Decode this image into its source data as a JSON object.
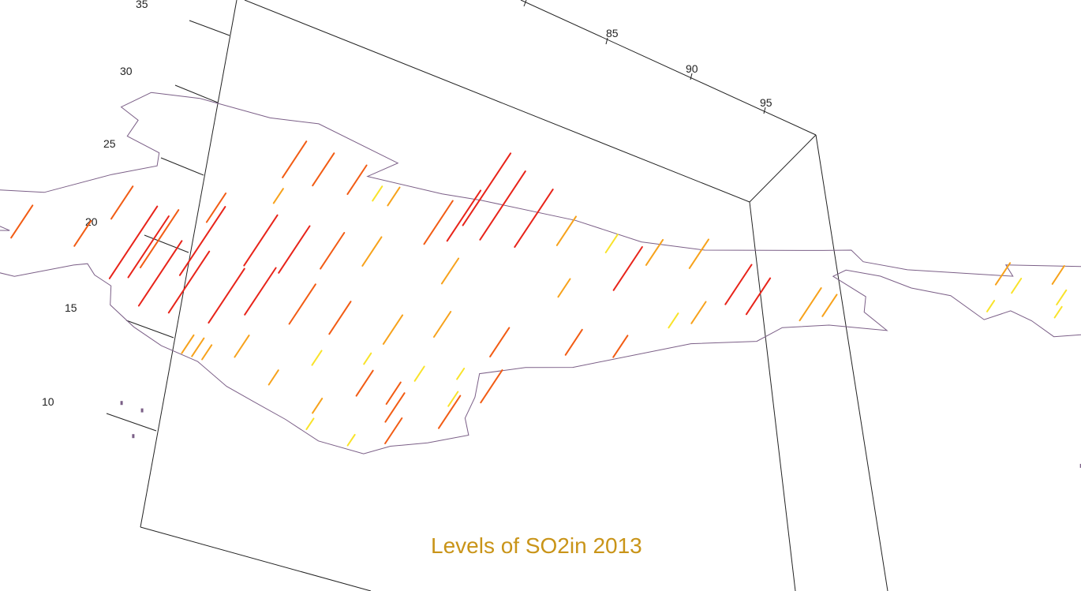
{
  "chart_data": {
    "type": "3d-spike-map",
    "title": "Levels of SO2in 2013",
    "title_color": "#c99418",
    "map_outline_color": "#7b5f87",
    "ylabel_ticks": [
      "35",
      "30",
      "25",
      "20",
      "15",
      "10"
    ],
    "xlabel_ticks": [
      "85",
      "90",
      "95"
    ],
    "color_levels": [
      {
        "level": "high",
        "color": "#e8241a"
      },
      {
        "level": "medium-high",
        "color": "#f25c14"
      },
      {
        "level": "medium",
        "color": "#f7a21b"
      },
      {
        "level": "low",
        "color": "#f9e32a"
      }
    ],
    "points": [
      {
        "lon": 77.0,
        "lat": 30.7,
        "level": "medium-high",
        "value": 1.0
      },
      {
        "lon": 77.6,
        "lat": 30.2,
        "level": "medium-high",
        "value": 0.9
      },
      {
        "lon": 78.3,
        "lat": 29.7,
        "level": "medium-high",
        "value": 0.8
      },
      {
        "lon": 78.8,
        "lat": 29.3,
        "level": "low",
        "value": 0.4
      },
      {
        "lon": 79.1,
        "lat": 29.0,
        "level": "medium",
        "value": 0.5
      },
      {
        "lon": 80.6,
        "lat": 27.8,
        "level": "high",
        "value": 2.0
      },
      {
        "lon": 80.9,
        "lat": 26.7,
        "level": "high",
        "value": 1.9
      },
      {
        "lon": 81.6,
        "lat": 26.3,
        "level": "high",
        "value": 1.6
      },
      {
        "lon": 80.2,
        "lat": 26.4,
        "level": "high",
        "value": 1.4
      },
      {
        "lon": 79.7,
        "lat": 26.0,
        "level": "medium-high",
        "value": 1.2
      },
      {
        "lon": 82.5,
        "lat": 26.7,
        "level": "medium",
        "value": 0.8
      },
      {
        "lon": 83.5,
        "lat": 26.4,
        "level": "low",
        "value": 0.5
      },
      {
        "lon": 84.3,
        "lat": 25.6,
        "level": "medium",
        "value": 0.7
      },
      {
        "lon": 85.2,
        "lat": 25.6,
        "level": "medium",
        "value": 0.8
      },
      {
        "lon": 76.7,
        "lat": 28.5,
        "level": "medium",
        "value": 0.4
      },
      {
        "lon": 73.2,
        "lat": 26.2,
        "level": "medium-high",
        "value": 0.9
      },
      {
        "lon": 75.2,
        "lat": 26.5,
        "level": "medium-high",
        "value": 0.8
      },
      {
        "lon": 71.0,
        "lat": 24.0,
        "level": "medium-high",
        "value": 0.9
      },
      {
        "lon": 72.3,
        "lat": 23.7,
        "level": "medium-high",
        "value": 0.7
      },
      {
        "lon": 73.6,
        "lat": 22.3,
        "level": "medium-high",
        "value": 1.6
      },
      {
        "lon": 72.9,
        "lat": 21.2,
        "level": "high",
        "value": 2.0
      },
      {
        "lon": 73.3,
        "lat": 21.4,
        "level": "high",
        "value": 1.7
      },
      {
        "lon": 74.4,
        "lat": 21.9,
        "level": "high",
        "value": 1.9
      },
      {
        "lon": 75.8,
        "lat": 23.1,
        "level": "high",
        "value": 1.4
      },
      {
        "lon": 76.5,
        "lat": 22.7,
        "level": "high",
        "value": 1.3
      },
      {
        "lon": 77.4,
        "lat": 23.3,
        "level": "medium-high",
        "value": 1.0
      },
      {
        "lon": 78.3,
        "lat": 23.8,
        "level": "medium",
        "value": 0.8
      },
      {
        "lon": 79.9,
        "lat": 22.8,
        "level": "medium",
        "value": 0.7
      },
      {
        "lon": 82.3,
        "lat": 22.4,
        "level": "medium",
        "value": 0.5
      },
      {
        "lon": 83.5,
        "lat": 23.3,
        "level": "high",
        "value": 1.2
      },
      {
        "lon": 85.8,
        "lat": 22.8,
        "level": "high",
        "value": 1.1
      },
      {
        "lon": 86.2,
        "lat": 22.1,
        "level": "high",
        "value": 1.0
      },
      {
        "lon": 87.3,
        "lat": 21.9,
        "level": "medium",
        "value": 0.9
      },
      {
        "lon": 87.8,
        "lat": 22.4,
        "level": "medium",
        "value": 0.6
      },
      {
        "lon": 85.0,
        "lat": 21.0,
        "level": "medium",
        "value": 0.6
      },
      {
        "lon": 84.5,
        "lat": 20.5,
        "level": "low",
        "value": 0.4
      },
      {
        "lon": 73.4,
        "lat": 19.1,
        "level": "high",
        "value": 1.8
      },
      {
        "lon": 74.0,
        "lat": 18.7,
        "level": "high",
        "value": 1.7
      },
      {
        "lon": 74.8,
        "lat": 18.1,
        "level": "high",
        "value": 1.5
      },
      {
        "lon": 75.6,
        "lat": 19.0,
        "level": "high",
        "value": 1.3
      },
      {
        "lon": 76.5,
        "lat": 18.5,
        "level": "medium-high",
        "value": 1.1
      },
      {
        "lon": 77.3,
        "lat": 17.9,
        "level": "medium-high",
        "value": 0.9
      },
      {
        "lon": 78.4,
        "lat": 17.4,
        "level": "medium",
        "value": 0.8
      },
      {
        "lon": 79.5,
        "lat": 18.3,
        "level": "medium",
        "value": 0.7
      },
      {
        "lon": 80.6,
        "lat": 17.0,
        "level": "medium-high",
        "value": 0.8
      },
      {
        "lon": 82.2,
        "lat": 17.6,
        "level": "medium-high",
        "value": 0.7
      },
      {
        "lon": 83.2,
        "lat": 17.7,
        "level": "medium-high",
        "value": 0.6
      },
      {
        "lon": 74.1,
        "lat": 15.4,
        "level": "medium",
        "value": 0.5
      },
      {
        "lon": 74.3,
        "lat": 15.2,
        "level": "medium",
        "value": 0.5
      },
      {
        "lon": 74.5,
        "lat": 15.0,
        "level": "medium",
        "value": 0.4
      },
      {
        "lon": 75.2,
        "lat": 15.4,
        "level": "medium",
        "value": 0.6
      },
      {
        "lon": 76.8,
        "lat": 15.2,
        "level": "low",
        "value": 0.4
      },
      {
        "lon": 77.9,
        "lat": 15.6,
        "level": "low",
        "value": 0.3
      },
      {
        "lon": 78.9,
        "lat": 14.5,
        "level": "low",
        "value": 0.4
      },
      {
        "lon": 79.8,
        "lat": 14.9,
        "level": "low",
        "value": 0.3
      },
      {
        "lon": 75.8,
        "lat": 13.3,
        "level": "medium",
        "value": 0.4
      },
      {
        "lon": 77.6,
        "lat": 12.9,
        "level": "medium-high",
        "value": 0.7
      },
      {
        "lon": 78.2,
        "lat": 12.4,
        "level": "medium-high",
        "value": 0.6
      },
      {
        "lon": 79.5,
        "lat": 12.6,
        "level": "low",
        "value": 0.4
      },
      {
        "lon": 80.2,
        "lat": 13.1,
        "level": "medium-high",
        "value": 0.9
      },
      {
        "lon": 76.6,
        "lat": 11.2,
        "level": "medium",
        "value": 0.4
      },
      {
        "lon": 78.1,
        "lat": 10.9,
        "level": "medium-high",
        "value": 0.8
      },
      {
        "lon": 79.2,
        "lat": 10.7,
        "level": "medium-high",
        "value": 0.9
      },
      {
        "lon": 76.4,
        "lat": 9.8,
        "level": "low",
        "value": 0.3
      },
      {
        "lon": 78.0,
        "lat": 9.1,
        "level": "medium-high",
        "value": 0.7
      },
      {
        "lon": 77.2,
        "lat": 8.7,
        "level": "low",
        "value": 0.3
      },
      {
        "lon": 91.6,
        "lat": 26.1,
        "level": "medium",
        "value": 0.6
      },
      {
        "lon": 92.8,
        "lat": 26.5,
        "level": "medium",
        "value": 0.5
      },
      {
        "lon": 93.8,
        "lat": 26.6,
        "level": "medium",
        "value": 0.6
      },
      {
        "lon": 94.9,
        "lat": 27.3,
        "level": "medium",
        "value": 0.7
      },
      {
        "lon": 95.4,
        "lat": 27.1,
        "level": "medium-high",
        "value": 0.6
      },
      {
        "lon": 91.9,
        "lat": 25.5,
        "level": "low",
        "value": 0.4
      },
      {
        "lon": 92.8,
        "lat": 24.8,
        "level": "low",
        "value": 0.4
      },
      {
        "lon": 93.9,
        "lat": 24.8,
        "level": "low",
        "value": 0.3
      },
      {
        "lon": 92.7,
        "lat": 23.7,
        "level": "low",
        "value": 0.3
      },
      {
        "lon": 91.3,
        "lat": 23.8,
        "level": "low",
        "value": 0.3
      }
    ]
  }
}
